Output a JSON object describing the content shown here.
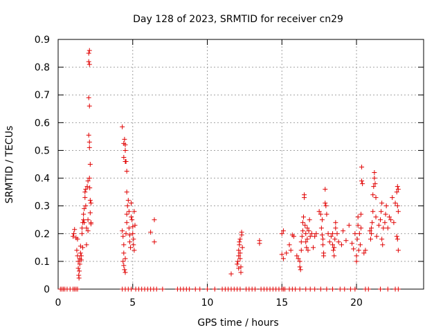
{
  "chart_data": {
    "type": "scatter",
    "title": "Day 128 of 2023, SRMTID for receiver cn29",
    "xlabel": "GPS time / hours",
    "ylabel": "SRMTID / TECUs",
    "xlim": [
      0,
      24.5
    ],
    "ylim": [
      0,
      0.9
    ],
    "xticks": [
      0,
      5,
      10,
      15,
      20
    ],
    "yticks": [
      0,
      0.1,
      0.2,
      0.3,
      0.4,
      0.5,
      0.6,
      0.7,
      0.8,
      0.9
    ],
    "xtick_labels": [
      "0",
      "5",
      "10",
      "15",
      "20"
    ],
    "ytick_labels": [
      "0",
      "0.1",
      "0.2",
      "0.3",
      "0.4",
      "0.5",
      "0.6",
      "0.7",
      "0.8",
      "0.9"
    ],
    "grid": true,
    "marker": "+",
    "color": "#e00000",
    "series": [
      {
        "name": "cn29",
        "points": [
          [
            0.15,
            0
          ],
          [
            0.25,
            0
          ],
          [
            0.35,
            0
          ],
          [
            0.45,
            0
          ],
          [
            0.6,
            0
          ],
          [
            0.8,
            0
          ],
          [
            1.0,
            0
          ],
          [
            1.1,
            0
          ],
          [
            1.2,
            0
          ],
          [
            1.3,
            0
          ],
          [
            1.0,
            0.19
          ],
          [
            1.05,
            0.2
          ],
          [
            1.1,
            0.215
          ],
          [
            1.2,
            0.185
          ],
          [
            1.3,
            0.18
          ],
          [
            1.25,
            0.14
          ],
          [
            1.3,
            0.12
          ],
          [
            1.35,
            0.1
          ],
          [
            1.35,
            0.075
          ],
          [
            1.38,
            0.05
          ],
          [
            1.4,
            0.04
          ],
          [
            1.42,
            0.065
          ],
          [
            1.45,
            0.09
          ],
          [
            1.45,
            0.11
          ],
          [
            1.5,
            0.13
          ],
          [
            1.5,
            0.155
          ],
          [
            1.55,
            0.105
          ],
          [
            1.55,
            0.12
          ],
          [
            1.6,
            0.2
          ],
          [
            1.6,
            0.22
          ],
          [
            1.65,
            0.24
          ],
          [
            1.65,
            0.15
          ],
          [
            1.7,
            0.25
          ],
          [
            1.7,
            0.27
          ],
          [
            1.75,
            0.29
          ],
          [
            1.75,
            0.24
          ],
          [
            1.8,
            0.33
          ],
          [
            1.8,
            0.35
          ],
          [
            1.85,
            0.36
          ],
          [
            1.85,
            0.3
          ],
          [
            1.9,
            0.22
          ],
          [
            1.9,
            0.16
          ],
          [
            1.95,
            0.37
          ],
          [
            2.0,
            0.21
          ],
          [
            2.0,
            0.25
          ],
          [
            2.0,
            0.39
          ],
          [
            2.05,
            0.85
          ],
          [
            2.05,
            0.82
          ],
          [
            2.1,
            0.86
          ],
          [
            2.1,
            0.81
          ],
          [
            2.05,
            0.69
          ],
          [
            2.1,
            0.66
          ],
          [
            2.05,
            0.555
          ],
          [
            2.1,
            0.53
          ],
          [
            2.1,
            0.51
          ],
          [
            2.15,
            0.45
          ],
          [
            2.1,
            0.4
          ],
          [
            2.12,
            0.365
          ],
          [
            2.15,
            0.32
          ],
          [
            2.2,
            0.31
          ],
          [
            2.15,
            0.275
          ],
          [
            2.2,
            0.235
          ],
          [
            2.2,
            0.24
          ],
          [
            4.3,
            0.585
          ],
          [
            4.4,
            0.525
          ],
          [
            4.45,
            0.54
          ],
          [
            4.5,
            0.52
          ],
          [
            4.5,
            0.5
          ],
          [
            4.4,
            0.475
          ],
          [
            4.5,
            0.46
          ],
          [
            4.55,
            0.46
          ],
          [
            4.6,
            0.425
          ],
          [
            4.6,
            0.35
          ],
          [
            4.3,
            0.21
          ],
          [
            4.35,
            0.19
          ],
          [
            4.4,
            0.16
          ],
          [
            4.4,
            0.13
          ],
          [
            4.35,
            0.1
          ],
          [
            4.4,
            0.085
          ],
          [
            4.45,
            0.07
          ],
          [
            4.5,
            0.06
          ],
          [
            4.5,
            0.11
          ],
          [
            4.55,
            0.2
          ],
          [
            4.6,
            0.24
          ],
          [
            4.6,
            0.27
          ],
          [
            4.65,
            0.3
          ],
          [
            4.7,
            0.32
          ],
          [
            4.75,
            0.28
          ],
          [
            4.75,
            0.22
          ],
          [
            4.8,
            0.17
          ],
          [
            4.85,
            0.15
          ],
          [
            4.8,
            0.195
          ],
          [
            4.9,
            0.31
          ],
          [
            4.9,
            0.26
          ],
          [
            4.95,
            0.25
          ],
          [
            5.0,
            0.225
          ],
          [
            5.0,
            0.2
          ],
          [
            5.05,
            0.18
          ],
          [
            5.05,
            0.16
          ],
          [
            5.1,
            0.28
          ],
          [
            5.1,
            0.14
          ],
          [
            5.15,
            0.23
          ],
          [
            6.2,
            0.205
          ],
          [
            6.45,
            0.25
          ],
          [
            6.45,
            0.17
          ],
          [
            4.3,
            0
          ],
          [
            4.5,
            0
          ],
          [
            4.7,
            0
          ],
          [
            4.9,
            0
          ],
          [
            5.2,
            0
          ],
          [
            5.4,
            0
          ],
          [
            5.6,
            0
          ],
          [
            5.8,
            0
          ],
          [
            6.0,
            0
          ],
          [
            6.2,
            0
          ],
          [
            6.4,
            0
          ],
          [
            6.6,
            0
          ],
          [
            7.0,
            0
          ],
          [
            8.0,
            0
          ],
          [
            8.2,
            0
          ],
          [
            8.4,
            0
          ],
          [
            8.6,
            0
          ],
          [
            8.8,
            0
          ],
          [
            9.2,
            0
          ],
          [
            9.5,
            0
          ],
          [
            10.0,
            0
          ],
          [
            10.5,
            0
          ],
          [
            11.0,
            0
          ],
          [
            11.2,
            0
          ],
          [
            11.4,
            0
          ],
          [
            11.6,
            0
          ],
          [
            11.8,
            0
          ],
          [
            12.0,
            0
          ],
          [
            12.2,
            0
          ],
          [
            12.6,
            0
          ],
          [
            12.8,
            0
          ],
          [
            13.0,
            0
          ],
          [
            13.2,
            0
          ],
          [
            13.6,
            0
          ],
          [
            13.8,
            0
          ],
          [
            14.0,
            0
          ],
          [
            14.2,
            0
          ],
          [
            14.4,
            0
          ],
          [
            14.6,
            0
          ],
          [
            14.8,
            0
          ],
          [
            15.0,
            0
          ],
          [
            15.1,
            0
          ],
          [
            15.2,
            0
          ],
          [
            15.5,
            0
          ],
          [
            15.7,
            0
          ],
          [
            15.9,
            0
          ],
          [
            16.2,
            0
          ],
          [
            16.6,
            0
          ],
          [
            16.9,
            0
          ],
          [
            17.2,
            0
          ],
          [
            17.6,
            0
          ],
          [
            18.0,
            0
          ],
          [
            18.4,
            0
          ],
          [
            18.9,
            0
          ],
          [
            19.2,
            0
          ],
          [
            19.6,
            0
          ],
          [
            19.9,
            0
          ],
          [
            20.6,
            0
          ],
          [
            20.8,
            0
          ],
          [
            21.6,
            0
          ],
          [
            22.1,
            0
          ],
          [
            22.6,
            0
          ],
          [
            22.8,
            0
          ],
          [
            11.6,
            0.055
          ],
          [
            12.0,
            0.09
          ],
          [
            12.05,
            0.1
          ],
          [
            12.1,
            0.12
          ],
          [
            12.1,
            0.14
          ],
          [
            12.15,
            0.16
          ],
          [
            12.15,
            0.17
          ],
          [
            12.2,
            0.13
          ],
          [
            12.2,
            0.11
          ],
          [
            12.25,
            0.08
          ],
          [
            12.25,
            0.06
          ],
          [
            12.3,
            0.195
          ],
          [
            12.3,
            0.205
          ],
          [
            12.35,
            0.15
          ],
          [
            12.1,
            0.075
          ],
          [
            12.2,
            0.18
          ],
          [
            13.5,
            0.165
          ],
          [
            13.5,
            0.175
          ],
          [
            15.0,
            0.2
          ],
          [
            15.1,
            0.21
          ],
          [
            15.0,
            0.125
          ],
          [
            15.1,
            0.11
          ],
          [
            15.3,
            0.13
          ],
          [
            15.5,
            0.16
          ],
          [
            15.6,
            0.14
          ],
          [
            15.7,
            0.195
          ],
          [
            15.8,
            0.19
          ],
          [
            16.0,
            0.12
          ],
          [
            16.1,
            0.11
          ],
          [
            16.2,
            0.1
          ],
          [
            16.2,
            0.08
          ],
          [
            16.25,
            0.07
          ],
          [
            16.3,
            0.14
          ],
          [
            16.3,
            0.17
          ],
          [
            16.35,
            0.19
          ],
          [
            16.4,
            0.21
          ],
          [
            16.4,
            0.24
          ],
          [
            16.45,
            0.26
          ],
          [
            16.5,
            0.34
          ],
          [
            16.5,
            0.33
          ],
          [
            16.55,
            0.23
          ],
          [
            16.6,
            0.2
          ],
          [
            16.6,
            0.17
          ],
          [
            16.65,
            0.15
          ],
          [
            16.7,
            0.22
          ],
          [
            16.7,
            0.18
          ],
          [
            16.75,
            0.14
          ],
          [
            16.8,
            0.21
          ],
          [
            16.85,
            0.25
          ],
          [
            16.9,
            0.19
          ],
          [
            17.0,
            0.2
          ],
          [
            17.1,
            0.15
          ],
          [
            17.2,
            0.19
          ],
          [
            17.3,
            0.2
          ],
          [
            17.5,
            0.28
          ],
          [
            17.6,
            0.27
          ],
          [
            17.7,
            0.25
          ],
          [
            17.65,
            0.22
          ],
          [
            17.7,
            0.195
          ],
          [
            17.75,
            0.18
          ],
          [
            17.75,
            0.16
          ],
          [
            17.8,
            0.13
          ],
          [
            17.8,
            0.12
          ],
          [
            17.9,
            0.31
          ],
          [
            17.9,
            0.36
          ],
          [
            17.95,
            0.3
          ],
          [
            18.0,
            0.27
          ],
          [
            18.1,
            0.2
          ],
          [
            18.2,
            0.17
          ],
          [
            18.3,
            0.19
          ],
          [
            18.4,
            0.2
          ],
          [
            18.4,
            0.16
          ],
          [
            18.45,
            0.14
          ],
          [
            18.5,
            0.12
          ],
          [
            18.5,
            0.15
          ],
          [
            18.55,
            0.18
          ],
          [
            18.6,
            0.22
          ],
          [
            18.6,
            0.24
          ],
          [
            18.7,
            0.2
          ],
          [
            18.8,
            0.17
          ],
          [
            19.0,
            0.16
          ],
          [
            19.1,
            0.21
          ],
          [
            19.3,
            0.175
          ],
          [
            19.5,
            0.23
          ],
          [
            19.7,
            0.165
          ],
          [
            19.8,
            0.145
          ],
          [
            19.9,
            0.2
          ],
          [
            20.0,
            0.12
          ],
          [
            20.0,
            0.1
          ],
          [
            20.05,
            0.18
          ],
          [
            20.1,
            0.23
          ],
          [
            20.1,
            0.26
          ],
          [
            20.15,
            0.14
          ],
          [
            20.2,
            0.2
          ],
          [
            20.25,
            0.16
          ],
          [
            20.3,
            0.27
          ],
          [
            20.3,
            0.22
          ],
          [
            20.35,
            0.39
          ],
          [
            20.35,
            0.44
          ],
          [
            20.4,
            0.38
          ],
          [
            20.5,
            0.13
          ],
          [
            20.6,
            0.14
          ],
          [
            20.9,
            0.21
          ],
          [
            20.95,
            0.18
          ],
          [
            21.0,
            0.22
          ],
          [
            21.0,
            0.2
          ],
          [
            21.05,
            0.24
          ],
          [
            21.1,
            0.28
          ],
          [
            21.1,
            0.34
          ],
          [
            21.15,
            0.37
          ],
          [
            21.2,
            0.4
          ],
          [
            21.2,
            0.42
          ],
          [
            21.25,
            0.38
          ],
          [
            21.3,
            0.33
          ],
          [
            21.3,
            0.26
          ],
          [
            21.35,
            0.19
          ],
          [
            21.5,
            0.23
          ],
          [
            21.6,
            0.25
          ],
          [
            21.65,
            0.28
          ],
          [
            21.7,
            0.31
          ],
          [
            21.7,
            0.18
          ],
          [
            21.75,
            0.16
          ],
          [
            21.8,
            0.22
          ],
          [
            21.9,
            0.24
          ],
          [
            21.95,
            0.27
          ],
          [
            22.0,
            0.3
          ],
          [
            22.1,
            0.22
          ],
          [
            22.2,
            0.26
          ],
          [
            22.3,
            0.25
          ],
          [
            22.4,
            0.33
          ],
          [
            22.5,
            0.24
          ],
          [
            22.6,
            0.31
          ],
          [
            22.7,
            0.35
          ],
          [
            22.75,
            0.37
          ],
          [
            22.8,
            0.36
          ],
          [
            22.75,
            0.3
          ],
          [
            22.8,
            0.28
          ],
          [
            22.7,
            0.19
          ],
          [
            22.75,
            0.18
          ],
          [
            22.8,
            0.14
          ]
        ]
      }
    ]
  }
}
